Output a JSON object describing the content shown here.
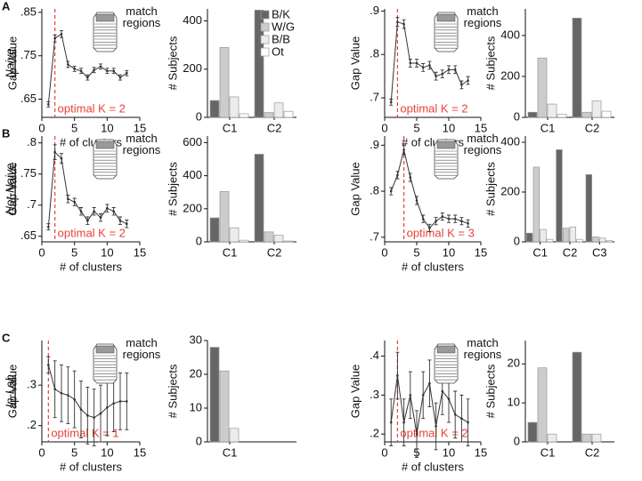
{
  "rows": [
    {
      "letter": "A",
      "name": "Naive"
    },
    {
      "letter": "B",
      "name": "Not-Naive"
    },
    {
      "letter": "C",
      "name": "In-Lab"
    }
  ],
  "chart_data": [
    {
      "type": "line",
      "ylabel": "Gap Value",
      "xlabel": "# of clusters",
      "x": [
        1,
        2,
        3,
        4,
        5,
        6,
        7,
        8,
        9,
        10,
        11,
        12,
        13
      ],
      "series": [
        {
          "color": "#333333",
          "values": [
            0.638,
            0.79,
            0.8,
            0.73,
            0.72,
            0.715,
            0.7,
            0.717,
            0.725,
            0.715,
            0.715,
            0.7,
            0.71
          ],
          "errors": [
            0.006,
            0.008,
            0.008,
            0.007,
            0.006,
            0.006,
            0.006,
            0.006,
            0.006,
            0.006,
            0.006,
            0.006,
            0.006
          ]
        }
      ],
      "xlim": [
        0,
        15
      ],
      "xticks": [
        0,
        5,
        10,
        15
      ],
      "ylim": [
        0.608,
        0.858
      ],
      "yticks": [
        {
          "value": 0.65,
          "label": ".65"
        },
        {
          "value": 0.75,
          "label": ".75"
        },
        {
          "value": 0.85,
          "label": ".85"
        }
      ],
      "marker_x": 2,
      "marker_color": "#e8413a",
      "annotation": "optimal K = 2",
      "icon_label": "match regions"
    },
    {
      "type": "bar",
      "ylabel": "# Subjects",
      "categories": [
        "C1",
        "C2"
      ],
      "series": [
        {
          "name": "B/K",
          "color": "#666666",
          "values": [
            70,
            445
          ]
        },
        {
          "name": "W/G",
          "color": "#cccccc",
          "values": [
            290,
            20
          ]
        },
        {
          "name": "B/B",
          "color": "#ececec",
          "values": [
            85,
            60
          ]
        },
        {
          "name": "Ot",
          "color": "#ffffff",
          "values": [
            15,
            25
          ]
        }
      ],
      "ylim": [
        0,
        450
      ],
      "yticks": [
        0,
        200,
        400
      ],
      "legend": "top-right"
    },
    {
      "type": "line",
      "ylabel": "Gap Value",
      "xlabel": "# of clusters",
      "x": [
        1,
        2,
        3,
        4,
        5,
        6,
        7,
        8,
        9,
        10,
        11,
        12,
        13
      ],
      "series": [
        {
          "color": "#333333",
          "values": [
            0.69,
            0.875,
            0.87,
            0.78,
            0.78,
            0.77,
            0.775,
            0.75,
            0.755,
            0.765,
            0.765,
            0.73,
            0.74
          ],
          "errors": [
            0.007,
            0.01,
            0.01,
            0.009,
            0.009,
            0.009,
            0.009,
            0.009,
            0.009,
            0.009,
            0.009,
            0.009,
            0.009
          ]
        }
      ],
      "xlim": [
        0,
        15
      ],
      "xticks": [
        0,
        5,
        10,
        15
      ],
      "ylim": [
        0.655,
        0.905
      ],
      "yticks": [
        {
          "value": 0.7,
          "label": ".7"
        },
        {
          "value": 0.8,
          "label": ".8"
        },
        {
          "value": 0.9,
          "label": ".9"
        }
      ],
      "marker_x": 2,
      "marker_color": "#e8413a",
      "annotation": "optimal K = 2",
      "icon_label": "match regions"
    },
    {
      "type": "bar",
      "ylabel": "# Subjects",
      "categories": [
        "C1",
        "C2"
      ],
      "series": [
        {
          "name": "B/K",
          "color": "#666666",
          "values": [
            25,
            485
          ]
        },
        {
          "name": "W/G",
          "color": "#cccccc",
          "values": [
            290,
            25
          ]
        },
        {
          "name": "B/B",
          "color": "#ececec",
          "values": [
            65,
            80
          ]
        },
        {
          "name": "Ot",
          "color": "#ffffff",
          "values": [
            15,
            30
          ]
        }
      ],
      "ylim": [
        0,
        530
      ],
      "yticks": [
        0,
        200,
        400
      ]
    },
    {
      "type": "line",
      "ylabel": "Gap Value",
      "xlabel": "# of clusters",
      "x": [
        1,
        2,
        3,
        4,
        5,
        6,
        7,
        8,
        9,
        10,
        11,
        12,
        13
      ],
      "series": [
        {
          "color": "#333333",
          "values": [
            0.665,
            0.785,
            0.775,
            0.71,
            0.705,
            0.69,
            0.675,
            0.69,
            0.68,
            0.695,
            0.69,
            0.675,
            0.67
          ],
          "errors": [
            0.005,
            0.012,
            0.008,
            0.006,
            0.006,
            0.006,
            0.006,
            0.006,
            0.006,
            0.006,
            0.006,
            0.006,
            0.006
          ]
        }
      ],
      "xlim": [
        0,
        15
      ],
      "xticks": [
        0,
        5,
        10,
        15
      ],
      "ylim": [
        0.641,
        0.811
      ],
      "yticks": [
        {
          "value": 0.65,
          "label": ".65"
        },
        {
          "value": 0.7,
          "label": ".7"
        },
        {
          "value": 0.75,
          "label": ".75"
        },
        {
          "value": 0.8,
          "label": ".8"
        }
      ],
      "marker_x": 2,
      "marker_color": "#e8413a",
      "annotation": "optimal K = 2",
      "icon_label": "match regions"
    },
    {
      "type": "bar",
      "ylabel": "# Subjects",
      "categories": [
        "C1",
        "C2"
      ],
      "series": [
        {
          "name": "B/K",
          "color": "#666666",
          "values": [
            145,
            530
          ]
        },
        {
          "name": "W/G",
          "color": "#cccccc",
          "values": [
            305,
            60
          ]
        },
        {
          "name": "B/B",
          "color": "#ececec",
          "values": [
            85,
            40
          ]
        },
        {
          "name": "Ot",
          "color": "#ffffff",
          "values": [
            10,
            5
          ]
        }
      ],
      "ylim": [
        0,
        640
      ],
      "yticks": [
        0,
        200,
        400,
        600
      ]
    },
    {
      "type": "line",
      "ylabel": "Gap Value",
      "xlabel": "# of clusters",
      "x": [
        1,
        2,
        3,
        4,
        5,
        6,
        7,
        8,
        9,
        10,
        11,
        12,
        13
      ],
      "series": [
        {
          "color": "#333333",
          "values": [
            0.8,
            0.835,
            0.89,
            0.83,
            0.78,
            0.74,
            0.72,
            0.735,
            0.745,
            0.74,
            0.74,
            0.735,
            0.73
          ],
          "errors": [
            0.008,
            0.008,
            0.01,
            0.009,
            0.009,
            0.008,
            0.008,
            0.008,
            0.008,
            0.008,
            0.008,
            0.008,
            0.008
          ]
        }
      ],
      "xlim": [
        0,
        15
      ],
      "xticks": [
        0,
        5,
        10,
        15
      ],
      "ylim": [
        0.69,
        0.92
      ],
      "yticks": [
        {
          "value": 0.7,
          "label": ".7"
        },
        {
          "value": 0.8,
          "label": ".8"
        },
        {
          "value": 0.9,
          "label": ".9"
        }
      ],
      "marker_x": 3,
      "marker_color": "#e8413a",
      "annotation": "optimal K = 3",
      "icon_label": "match regions"
    },
    {
      "type": "bar",
      "ylabel": "# Subjects",
      "categories": [
        "C1",
        "C2",
        "C3"
      ],
      "series": [
        {
          "name": "B/K",
          "color": "#666666",
          "values": [
            35,
            370,
            270
          ]
        },
        {
          "name": "W/G",
          "color": "#cccccc",
          "values": [
            300,
            55,
            20
          ]
        },
        {
          "name": "B/B",
          "color": "#ececec",
          "values": [
            50,
            60,
            15
          ]
        },
        {
          "name": "Ot",
          "color": "#ffffff",
          "values": [
            10,
            10,
            5
          ]
        }
      ],
      "ylim": [
        0,
        425
      ],
      "yticks": [
        0,
        200,
        400
      ]
    },
    {
      "type": "line",
      "ylabel": "Gap Value",
      "xlabel": "# of clusters",
      "x": [
        1,
        2,
        3,
        4,
        5,
        6,
        7,
        8,
        9,
        10,
        11,
        12,
        13
      ],
      "series": [
        {
          "color": "#333333",
          "values": [
            0.35,
            0.29,
            0.28,
            0.275,
            0.265,
            0.24,
            0.225,
            0.22,
            0.23,
            0.245,
            0.255,
            0.26,
            0.26
          ],
          "errors": [
            0.02,
            0.07,
            0.07,
            0.07,
            0.07,
            0.07,
            0.07,
            0.07,
            0.07,
            0.07,
            0.07,
            0.07,
            0.07
          ]
        }
      ],
      "xlim": [
        0,
        15
      ],
      "xticks": [
        0,
        5,
        10,
        15
      ],
      "ylim": [
        0.16,
        0.41
      ],
      "yticks": [
        {
          "value": 0.2,
          "label": ".2"
        },
        {
          "value": 0.3,
          "label": ".3"
        }
      ],
      "marker_x": 1,
      "marker_color": "#e8413a",
      "annotation": "optimal K = 1",
      "icon_label": "match regions"
    },
    {
      "type": "bar",
      "ylabel": "# Subjects",
      "categories": [
        "C1"
      ],
      "series": [
        {
          "name": "B/K",
          "color": "#666666",
          "values": [
            28
          ]
        },
        {
          "name": "W/G",
          "color": "#cccccc",
          "values": [
            21
          ]
        },
        {
          "name": "B/B",
          "color": "#ececec",
          "values": [
            4
          ]
        },
        {
          "name": "Ot",
          "color": "#ffffff",
          "values": [
            0
          ]
        }
      ],
      "ylim": [
        0,
        30
      ],
      "yticks": [
        0,
        10,
        20,
        30
      ]
    },
    {
      "type": "line",
      "ylabel": "Gap Value",
      "xlabel": "# of clusters",
      "x": [
        1,
        2,
        3,
        4,
        5,
        6,
        7,
        8,
        9,
        10,
        11,
        12,
        13
      ],
      "series": [
        {
          "color": "#333333",
          "values": [
            0.23,
            0.35,
            0.23,
            0.3,
            0.2,
            0.3,
            0.33,
            0.22,
            0.31,
            0.29,
            0.25,
            0.24,
            0.23
          ],
          "errors": [
            0.06,
            0.06,
            0.06,
            0.06,
            0.06,
            0.06,
            0.06,
            0.06,
            0.06,
            0.06,
            0.06,
            0.06,
            0.06
          ]
        }
      ],
      "xlim": [
        0,
        15
      ],
      "xticks": [
        0,
        5,
        10,
        15
      ],
      "ylim": [
        0.18,
        0.44
      ],
      "yticks": [
        {
          "value": 0.2,
          "label": ".2"
        },
        {
          "value": 0.3,
          "label": ".3"
        },
        {
          "value": 0.4,
          "label": ".4"
        }
      ],
      "marker_x": 2,
      "marker_color": "#e8413a",
      "annotation": "optimal K = 2",
      "icon_label": "match regions"
    },
    {
      "type": "bar",
      "ylabel": "# Subjects",
      "categories": [
        "C1",
        "C2"
      ],
      "series": [
        {
          "name": "B/K",
          "color": "#666666",
          "values": [
            5,
            23
          ]
        },
        {
          "name": "W/G",
          "color": "#cccccc",
          "values": [
            19,
            2
          ]
        },
        {
          "name": "B/B",
          "color": "#ececec",
          "values": [
            2,
            2
          ]
        },
        {
          "name": "Ot",
          "color": "#ffffff",
          "values": [
            0,
            0
          ]
        }
      ],
      "ylim": [
        0,
        26
      ],
      "yticks": [
        0,
        10,
        20
      ]
    }
  ]
}
